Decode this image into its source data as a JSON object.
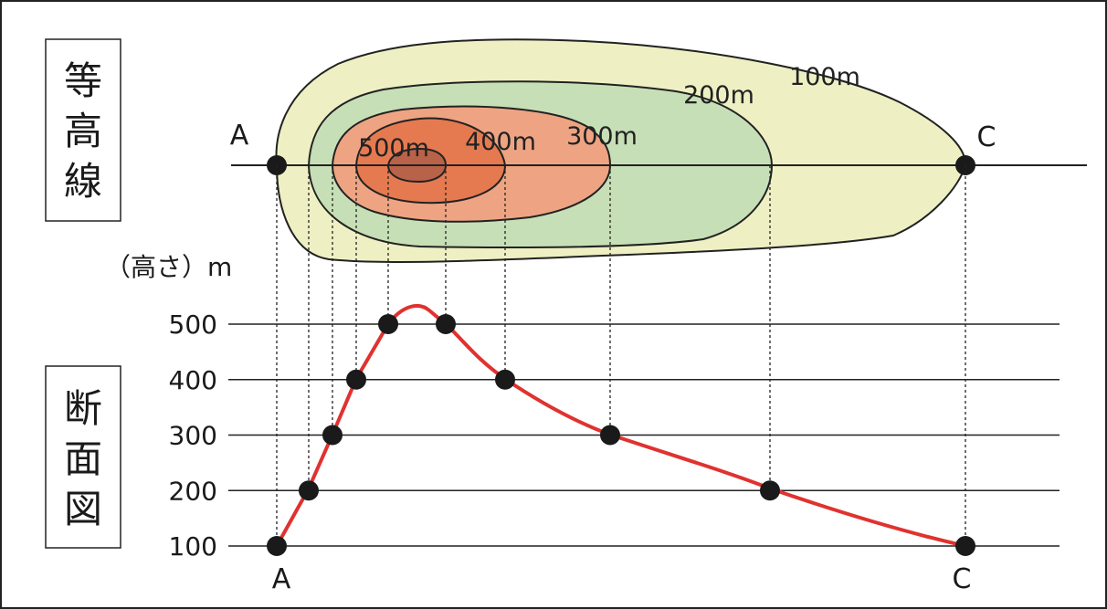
{
  "panels": {
    "contour_title": "等高線",
    "section_title": "断面図"
  },
  "points": {
    "start": "A",
    "end": "C"
  },
  "contour_labels": [
    "100m",
    "200m",
    "300m",
    "400m",
    "500m"
  ],
  "axis": {
    "ylabel": "（高さ）m",
    "ticks": [
      "500",
      "400",
      "300",
      "200",
      "100"
    ]
  },
  "colors": {
    "band_100": "#eef0c4",
    "band_200": "#c7dfb6",
    "band_300": "#eea482",
    "band_400": "#e57a50",
    "band_500": "#b8624a",
    "profile_line": "#e0322f",
    "point_fill": "#1a1a1a"
  },
  "profile": [
    {
      "x_label": "A",
      "height": 100
    },
    {
      "height": 200
    },
    {
      "height": 300
    },
    {
      "height": 400
    },
    {
      "height": 500
    },
    {
      "height": 500
    },
    {
      "height": 400
    },
    {
      "height": 300
    },
    {
      "height": 200
    },
    {
      "x_label": "C",
      "height": 100
    }
  ]
}
